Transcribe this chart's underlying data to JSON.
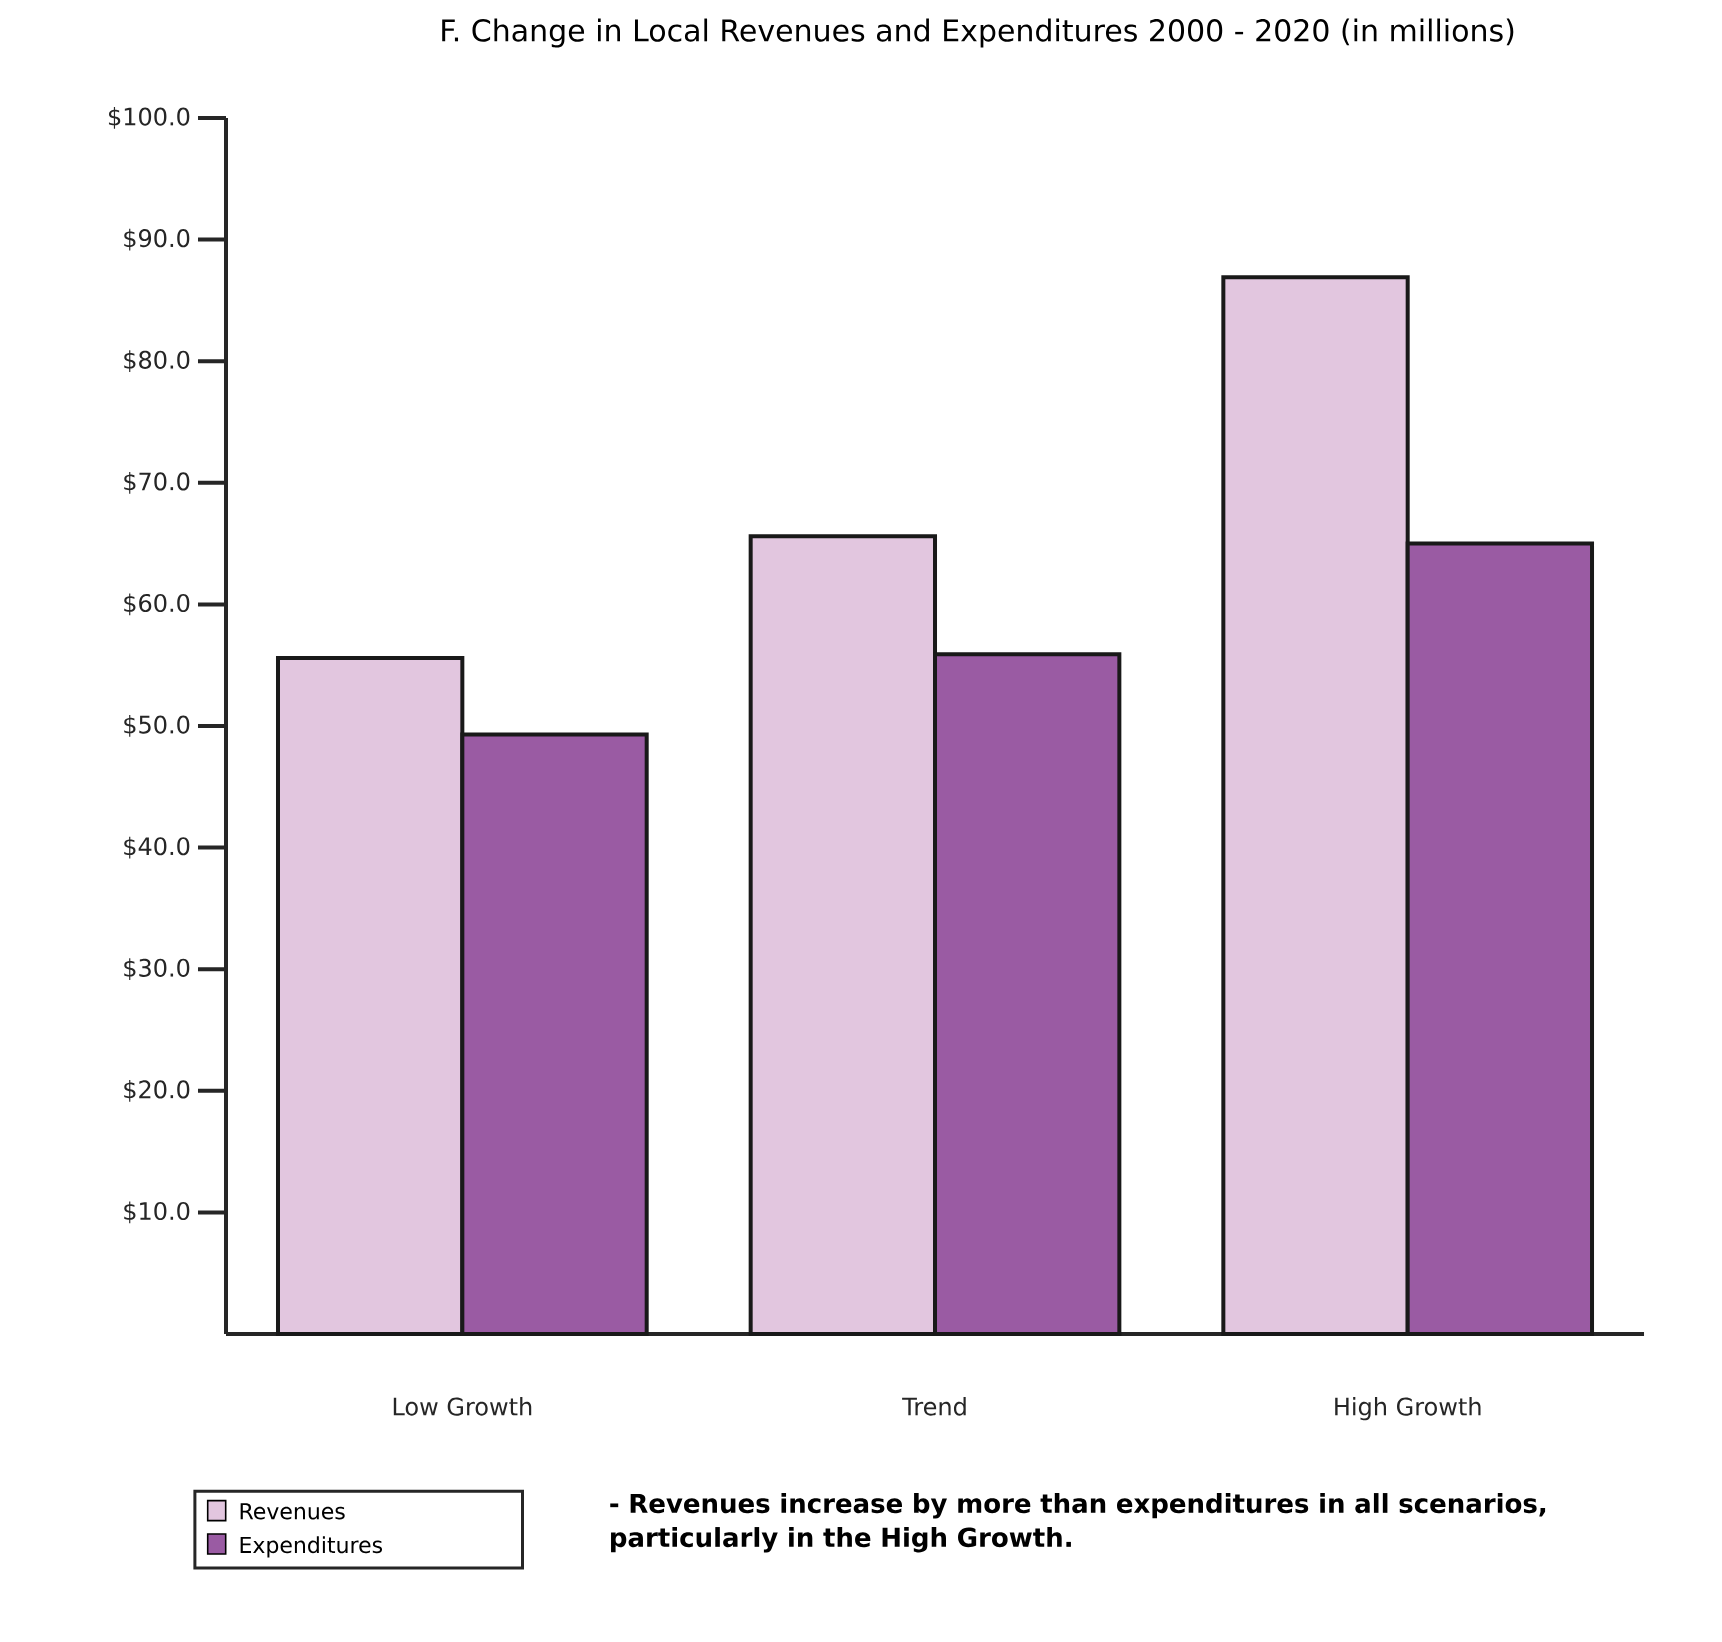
{
  "chart_data": {
    "type": "bar",
    "title": "F.  Change in Local Revenues and Expenditures 2000 - 2020 (in millions)",
    "categories": [
      "Low Growth",
      "Trend",
      "High Growth"
    ],
    "series": [
      {
        "name": "Revenues",
        "color": "#e2c6df",
        "values": [
          55.6,
          65.6,
          86.9
        ]
      },
      {
        "name": "Expenditures",
        "color": "#9a5ba3",
        "values": [
          49.3,
          55.9,
          65.0
        ]
      }
    ],
    "ylim": [
      0,
      100
    ],
    "yticks": [
      {
        "value": 10,
        "label": "$10.0"
      },
      {
        "value": 20,
        "label": "$20.0"
      },
      {
        "value": 30,
        "label": "$30.0"
      },
      {
        "value": 40,
        "label": "$40.0"
      },
      {
        "value": 50,
        "label": "$50.0"
      },
      {
        "value": 60,
        "label": "$60.0"
      },
      {
        "value": 70,
        "label": "$70.0"
      },
      {
        "value": 80,
        "label": "$80.0"
      },
      {
        "value": 90,
        "label": "$90.0"
      },
      {
        "value": 100,
        "label": "$100.0"
      }
    ],
    "legend": "bottom left",
    "annotations": [
      "**- Revenues increase by more than expenditures in all scenarios, particularly in the High Growth.**"
    ]
  }
}
